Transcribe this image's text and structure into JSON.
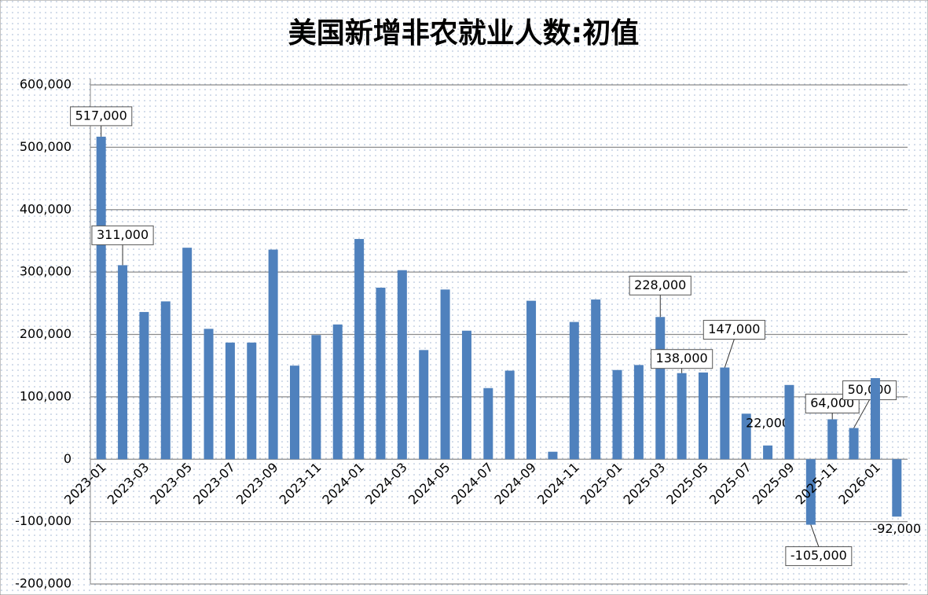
{
  "chart_data": {
    "type": "bar",
    "title": "美国新增非农就业人数:初值",
    "categories": [
      "2023-01",
      null,
      "2023-03",
      null,
      "2023-05",
      null,
      "2023-07",
      null,
      "2023-09",
      null,
      "2023-11",
      null,
      "2024-01",
      null,
      "2024-03",
      null,
      "2024-05",
      null,
      "2024-07",
      null,
      "2024-09",
      null,
      "2024-11",
      null,
      "2025-01",
      null,
      "2025-03",
      null,
      "2025-05",
      null,
      "2025-07",
      null,
      "2025-09",
      null,
      "2025-11",
      null,
      "2026-01",
      null
    ],
    "values": [
      517000,
      311000,
      236000,
      253000,
      339000,
      209000,
      187000,
      187000,
      336000,
      150000,
      199000,
      216000,
      353000,
      275000,
      303000,
      175000,
      272000,
      206000,
      114000,
      142000,
      254000,
      12000,
      220000,
      256000,
      143000,
      151000,
      228000,
      138000,
      139000,
      147000,
      73000,
      22000,
      119000,
      -105000,
      64000,
      50000,
      130000,
      -92000
    ],
    "value_labels": [
      "517,000",
      "311,000",
      null,
      null,
      null,
      null,
      null,
      null,
      null,
      null,
      null,
      null,
      null,
      null,
      null,
      null,
      null,
      null,
      null,
      null,
      null,
      null,
      null,
      null,
      null,
      null,
      "228,000",
      "138,000",
      null,
      "147,000",
      null,
      "22,000",
      null,
      "-105,000",
      "64,000",
      "50,000",
      null,
      "-92,000"
    ],
    "color": "#4f81bd",
    "ylim": [
      -200000,
      600000
    ],
    "yticks": [
      {
        "value": -200000,
        "label": "-200,000"
      },
      {
        "value": -100000,
        "label": "-100,000"
      },
      0,
      {
        "value": 100000,
        "label": "100,000"
      },
      {
        "value": 200000,
        "label": "200,000"
      },
      {
        "value": 300000,
        "label": "300,000"
      },
      {
        "value": 400000,
        "label": "400,000"
      },
      {
        "value": 500000,
        "label": "500,000"
      },
      {
        "value": 600000,
        "label": "600,000"
      }
    ],
    "grid": true
  }
}
